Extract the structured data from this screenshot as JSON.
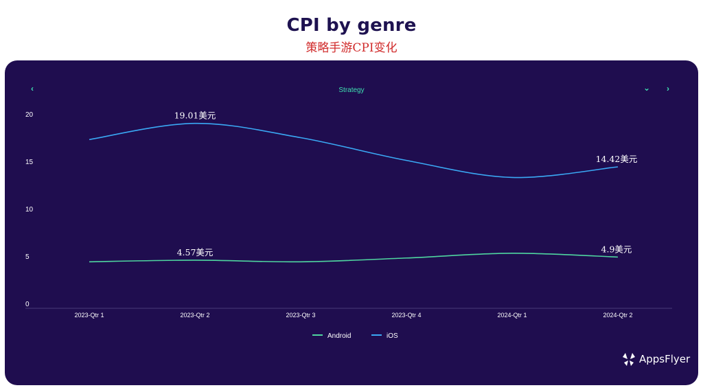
{
  "header": {
    "title": "CPI by genre",
    "subtitle": "策略手游CPI变化"
  },
  "panel": {
    "genre_label": "Strategy",
    "nav_prev": "‹",
    "nav_dropdown": "⌄",
    "nav_next": "›",
    "brand": "AppsFlyer"
  },
  "colors": {
    "panel_bg": "#1f0d4f",
    "android": "#4fd6a0",
    "ios": "#3aa9f5",
    "accent": "#3fe0b2"
  },
  "chart_data": {
    "type": "line",
    "categories": [
      "2023-Qtr 1",
      "2023-Qtr 2",
      "2023-Qtr 3",
      "2023-Qtr 4",
      "2024-Qtr 1",
      "2024-Qtr 2"
    ],
    "yticks": [
      0,
      5,
      10,
      15,
      20
    ],
    "ylim": [
      0,
      20
    ],
    "legend_position": "bottom",
    "series": [
      {
        "name": "Android",
        "color": "#4fd6a0",
        "values": [
          4.4,
          4.57,
          4.4,
          4.8,
          5.3,
          4.9
        ],
        "labels": [
          {
            "index": 1,
            "text": "4.57美元"
          },
          {
            "index": 5,
            "text": "4.9美元"
          }
        ]
      },
      {
        "name": "iOS",
        "color": "#3aa9f5",
        "values": [
          17.3,
          19.01,
          17.5,
          15.1,
          13.3,
          14.42
        ],
        "labels": [
          {
            "index": 1,
            "text": "19.01美元"
          },
          {
            "index": 5,
            "text": "14.42美元"
          }
        ]
      }
    ]
  }
}
